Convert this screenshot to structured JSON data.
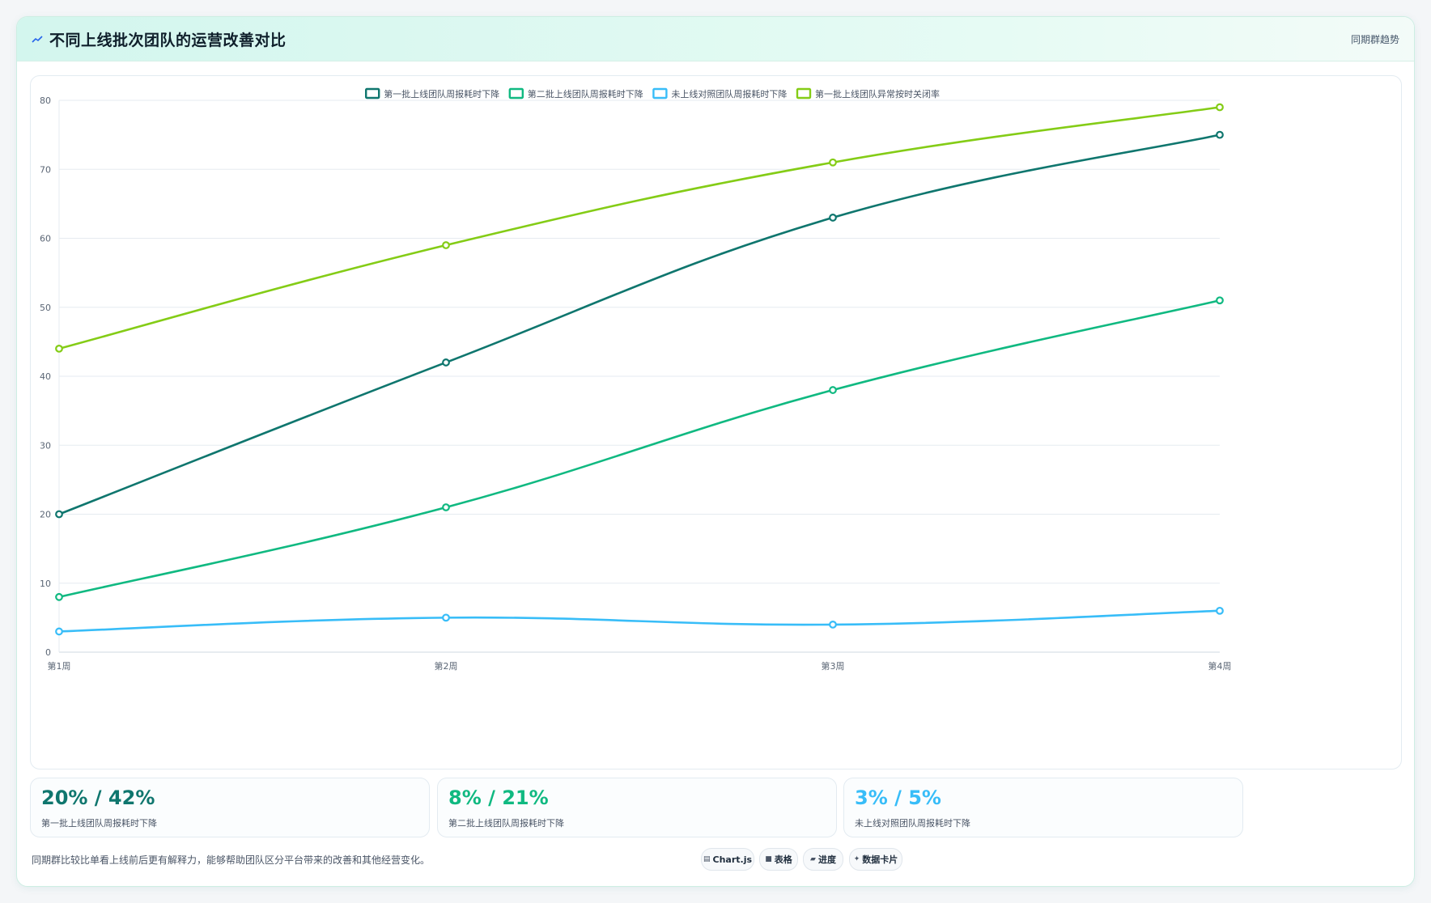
{
  "header": {
    "title": "不同上线批次团队的运营改善对比",
    "tag": "同期群趋势",
    "icon": "trend-line-icon"
  },
  "chart_data": {
    "type": "line",
    "categories": [
      "第1周",
      "第2周",
      "第3周",
      "第4周"
    ],
    "ylim": [
      0,
      80
    ],
    "yticks": [
      0,
      10,
      20,
      30,
      40,
      50,
      60,
      70,
      80
    ],
    "grid": true,
    "legend_position": "top",
    "series": [
      {
        "name": "第一批上线团队周报耗时下降",
        "color": "#0f766e",
        "values": [
          20,
          42,
          63,
          75
        ]
      },
      {
        "name": "第二批上线团队周报耗时下降",
        "color": "#10b981",
        "values": [
          8,
          21,
          38,
          51
        ]
      },
      {
        "name": "未上线对照团队周报耗时下降",
        "color": "#38bdf8",
        "values": [
          3,
          5,
          4,
          6
        ]
      },
      {
        "name": "第一批上线团队异常按时关闭率",
        "color": "#84cc16",
        "values": [
          44,
          59,
          71,
          79
        ]
      }
    ]
  },
  "stats": [
    {
      "value": "20% / 42%",
      "label": "第一批上线团队周报耗时下降",
      "color": "#0f766e"
    },
    {
      "value": "8% / 21%",
      "label": "第二批上线团队周报耗时下降",
      "color": "#10b981"
    },
    {
      "value": "3% / 5%",
      "label": "未上线对照团队周报耗时下降",
      "color": "#38bdf8"
    }
  ],
  "footnote": "同期群比较比单看上线前后更有解释力，能够帮助团队区分平台带来的改善和其他经营变化。",
  "chips": [
    {
      "icon": "chart-icon",
      "glyph": "▤",
      "label": "Chart.js"
    },
    {
      "icon": "table-icon",
      "glyph": "■",
      "label": "表格"
    },
    {
      "icon": "progress-icon",
      "glyph": "▰",
      "label": "进度"
    },
    {
      "icon": "sparkle-icon",
      "glyph": "✦",
      "label": "数据卡片"
    }
  ]
}
